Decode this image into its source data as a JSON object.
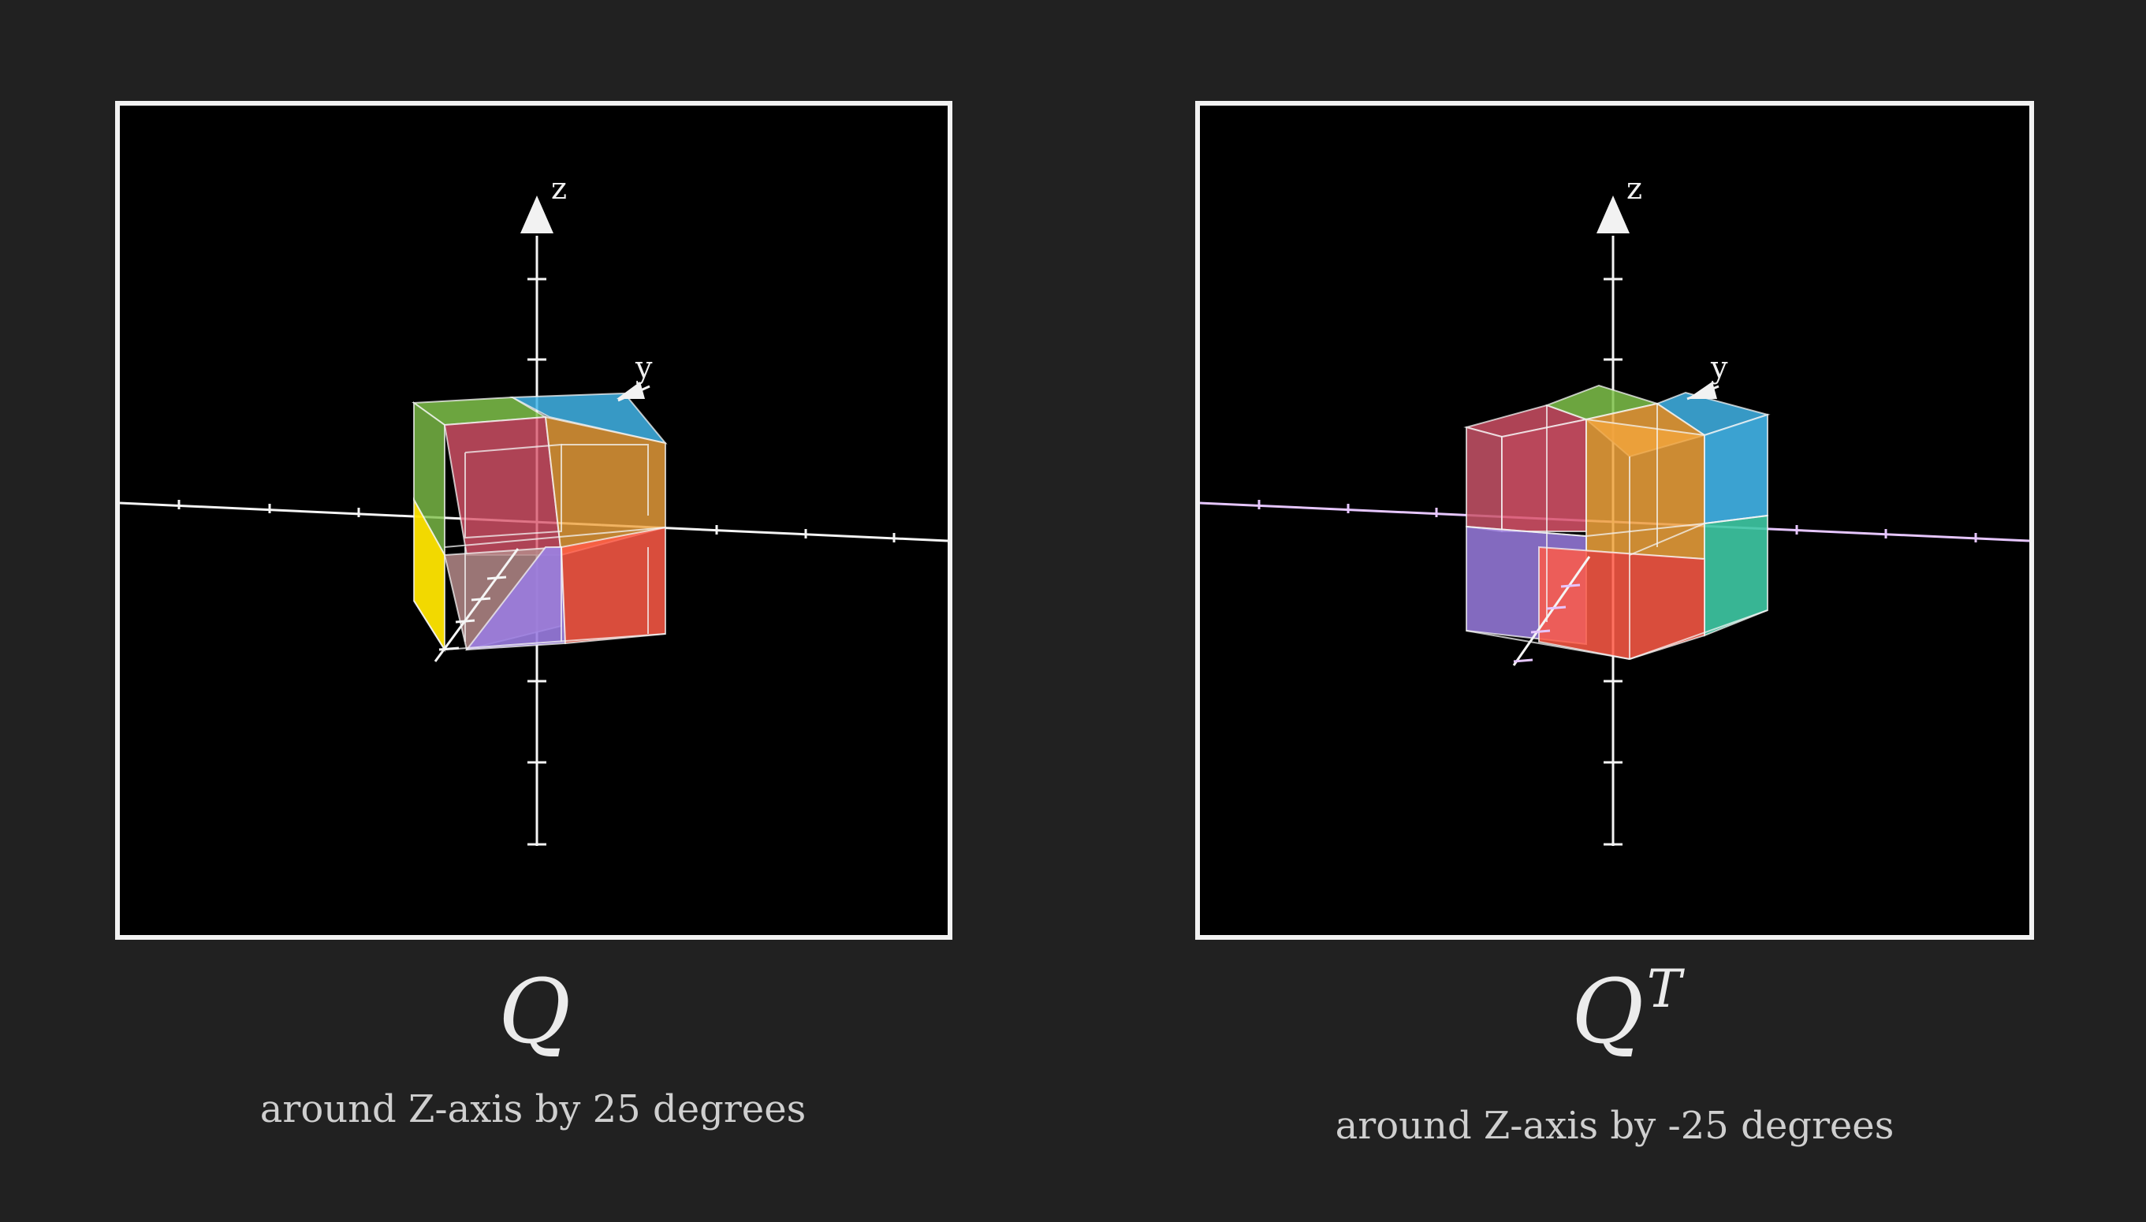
{
  "panels": [
    {
      "matrix_label": "Q",
      "caption": "around Z-axis by 25 degrees",
      "axis_z_label": "z",
      "axis_y_label": "y",
      "colors": {
        "green": "#7fc24a",
        "blue": "#41b4e8",
        "pink": "#d9546a",
        "orange": "#f0a33c",
        "yellow": "#ffe500",
        "purple": "#9a7ce0",
        "red": "#ff5a47",
        "axis_pink": "#e6c6ff"
      }
    },
    {
      "matrix_label": "Q",
      "matrix_superscript": "T",
      "caption": "around Z-axis by -25 degrees",
      "axis_z_label": "z",
      "axis_y_label": "y",
      "colors": {
        "green": "#7fc24a",
        "blue": "#41b4e8",
        "pink": "#d9546a",
        "orange": "#f0a33c",
        "teal": "#3ec9a4",
        "purple": "#9a7ce0",
        "red": "#ff5a47",
        "axis_pink": "#e6c6ff"
      }
    }
  ]
}
